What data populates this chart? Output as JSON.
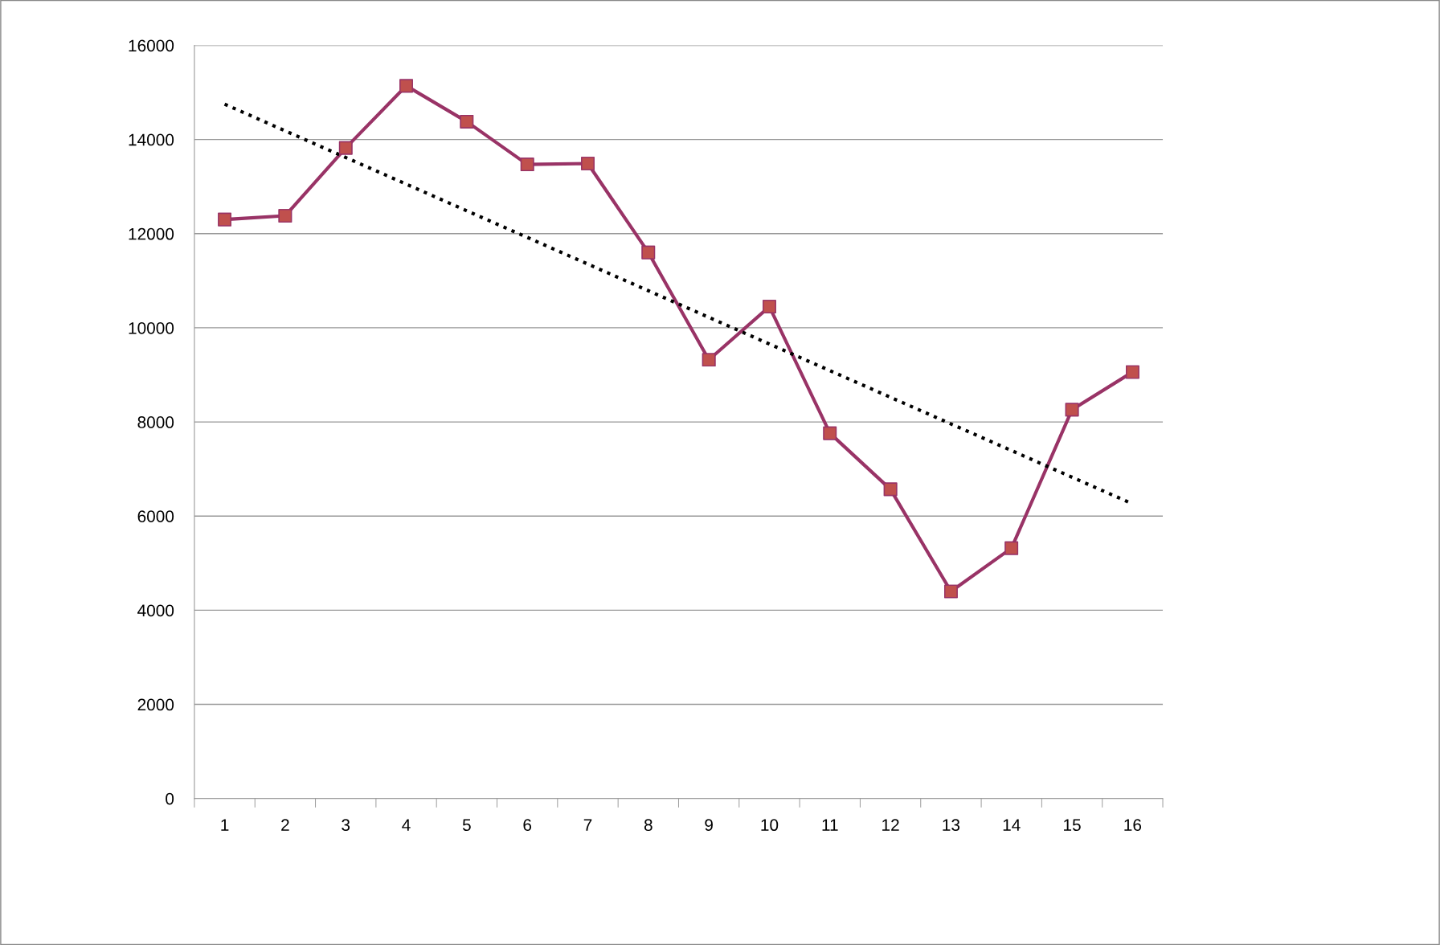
{
  "chart_data": {
    "type": "line",
    "categories": [
      "1",
      "2",
      "3",
      "4",
      "5",
      "6",
      "7",
      "8",
      "9",
      "10",
      "11",
      "12",
      "13",
      "14",
      "15",
      "16"
    ],
    "series": [
      {
        "color": "#993366",
        "colors": [
          "#c0504d",
          "#c0504d",
          "#c0504d",
          "#c0504d",
          "#c0504d",
          "#c0504d",
          "#c0504d",
          "#c0504d",
          "#c0504d",
          "#c0504d",
          "#c0504d",
          "#c0504d",
          "#c0504d",
          "#c0504d",
          "#c0504d",
          "#c0504d"
        ],
        "marker": "square",
        "line_style": "solid",
        "values": [
          12300,
          12380,
          13820,
          15140,
          14380,
          13470,
          13490,
          11600,
          9320,
          10450,
          7760,
          6570,
          4400,
          5320,
          8260,
          9060
        ]
      },
      {
        "type": "line",
        "color": "#000000",
        "marker": "none",
        "line_style": "dotted",
        "x": [
          "1",
          "16"
        ],
        "values": [
          14750,
          6260
        ]
      }
    ],
    "ylim": [
      0,
      16000
    ],
    "yticks": [
      0,
      2000,
      4000,
      6000,
      8000,
      10000,
      12000,
      14000,
      16000
    ],
    "grid": "y",
    "legend": false
  }
}
